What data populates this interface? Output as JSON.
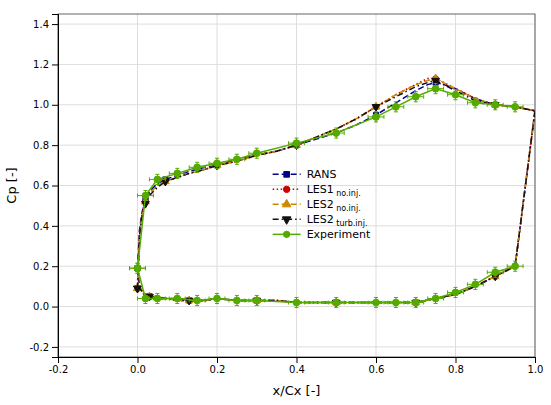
{
  "chart_data": {
    "type": "line",
    "x_label": "x/Cx [-]",
    "y_label": "Cp [-]",
    "xlim": [
      -0.2,
      1.0
    ],
    "ylim": [
      -0.25,
      1.45
    ],
    "xticks": [
      -0.2,
      {
        "value": 0.0,
        "label": "0.0"
      },
      0.2,
      0.4,
      0.6,
      0.8,
      {
        "value": 1.0,
        "label": "1.0"
      }
    ],
    "yticks": [
      -0.2,
      {
        "value": 0.0,
        "label": "0.0"
      },
      0.2,
      0.4,
      0.6,
      0.8,
      {
        "value": 1.0,
        "label": "1.0"
      },
      1.2,
      1.4
    ],
    "grid": true,
    "legend": "center",
    "series": [
      {
        "name": "RANS",
        "color": "#00008B",
        "line_style": "dashed",
        "marker": "square",
        "x": [
          0.0,
          0.005,
          0.01,
          0.015,
          0.02,
          0.03,
          0.04,
          0.05,
          0.07,
          0.1,
          0.13,
          0.17,
          0.2,
          0.25,
          0.3,
          0.35,
          0.4,
          0.45,
          0.5,
          0.55,
          0.6,
          0.65,
          0.7,
          0.73,
          0.75,
          0.77,
          0.8,
          0.85,
          0.9,
          0.95,
          1.0,
          null,
          0.0,
          0.005,
          0.01,
          0.02,
          0.03,
          0.05,
          0.07,
          0.1,
          0.13,
          0.17,
          0.2,
          0.25,
          0.3,
          0.35,
          0.4,
          0.45,
          0.5,
          0.55,
          0.6,
          0.65,
          0.7,
          0.75,
          0.8,
          0.85,
          0.9,
          0.95,
          1.0
        ],
        "values": [
          0.19,
          0.38,
          0.45,
          0.5,
          0.53,
          0.57,
          0.59,
          0.61,
          0.63,
          0.65,
          0.67,
          0.69,
          0.7,
          0.73,
          0.75,
          0.77,
          0.8,
          0.83,
          0.86,
          0.9,
          0.95,
          1.01,
          1.07,
          1.1,
          1.11,
          1.1,
          1.08,
          1.03,
          1.0,
          0.99,
          0.97,
          null,
          0.19,
          0.1,
          0.08,
          0.06,
          0.05,
          0.05,
          0.04,
          0.04,
          0.03,
          0.03,
          0.04,
          0.03,
          0.03,
          0.03,
          0.02,
          0.02,
          0.02,
          0.02,
          0.02,
          0.02,
          0.02,
          0.04,
          0.06,
          0.1,
          0.15,
          0.2,
          0.97
        ]
      },
      {
        "name": "LES1 no.inj.",
        "color": "#CC0000",
        "line_style": "dotted",
        "marker": "circle",
        "x": [
          0.0,
          0.005,
          0.01,
          0.015,
          0.02,
          0.03,
          0.04,
          0.05,
          0.07,
          0.1,
          0.13,
          0.17,
          0.2,
          0.25,
          0.3,
          0.35,
          0.4,
          0.45,
          0.5,
          0.55,
          0.6,
          0.65,
          0.7,
          0.73,
          0.75,
          0.77,
          0.8,
          0.85,
          0.9,
          0.95,
          1.0,
          null,
          0.0,
          0.005,
          0.01,
          0.02,
          0.03,
          0.05,
          0.07,
          0.1,
          0.13,
          0.17,
          0.2,
          0.25,
          0.3,
          0.35,
          0.4,
          0.45,
          0.5,
          0.55,
          0.6,
          0.65,
          0.7,
          0.75,
          0.8,
          0.85,
          0.9,
          0.95,
          1.0
        ],
        "values": [
          0.09,
          0.36,
          0.44,
          0.49,
          0.52,
          0.56,
          0.58,
          0.6,
          0.62,
          0.64,
          0.66,
          0.68,
          0.7,
          0.72,
          0.75,
          0.77,
          0.8,
          0.84,
          0.88,
          0.93,
          0.99,
          1.05,
          1.1,
          1.13,
          1.13,
          1.11,
          1.08,
          1.03,
          1.0,
          0.99,
          0.97,
          null,
          0.09,
          0.09,
          0.08,
          0.05,
          0.05,
          0.04,
          0.04,
          0.03,
          0.03,
          0.03,
          0.04,
          0.03,
          0.03,
          0.03,
          0.02,
          0.02,
          0.02,
          0.02,
          0.02,
          0.02,
          0.02,
          0.04,
          0.06,
          0.1,
          0.15,
          0.2,
          0.97
        ]
      },
      {
        "name": "LES2 no.inj.",
        "color": "#CC8800",
        "line_style": "dashed",
        "marker": "triangle-up",
        "x": [
          0.0,
          0.005,
          0.01,
          0.015,
          0.02,
          0.03,
          0.04,
          0.05,
          0.07,
          0.1,
          0.13,
          0.17,
          0.2,
          0.25,
          0.3,
          0.35,
          0.4,
          0.45,
          0.5,
          0.55,
          0.6,
          0.65,
          0.7,
          0.73,
          0.75,
          0.77,
          0.8,
          0.85,
          0.9,
          0.95,
          1.0,
          null,
          0.0,
          0.005,
          0.01,
          0.02,
          0.03,
          0.05,
          0.07,
          0.1,
          0.13,
          0.17,
          0.2,
          0.25,
          0.3,
          0.35,
          0.4,
          0.45,
          0.5,
          0.55,
          0.6,
          0.65,
          0.7,
          0.75,
          0.8,
          0.85,
          0.9,
          0.95,
          1.0
        ],
        "values": [
          0.09,
          0.35,
          0.43,
          0.48,
          0.52,
          0.56,
          0.58,
          0.6,
          0.62,
          0.64,
          0.66,
          0.68,
          0.7,
          0.72,
          0.75,
          0.77,
          0.8,
          0.84,
          0.88,
          0.93,
          0.99,
          1.05,
          1.1,
          1.12,
          1.13,
          1.11,
          1.08,
          1.03,
          1.0,
          0.99,
          0.97,
          null,
          0.09,
          0.09,
          0.08,
          0.05,
          0.05,
          0.04,
          0.04,
          0.03,
          0.03,
          0.03,
          0.04,
          0.03,
          0.03,
          0.03,
          0.02,
          0.02,
          0.02,
          0.02,
          0.02,
          0.02,
          0.02,
          0.04,
          0.06,
          0.1,
          0.15,
          0.2,
          0.97
        ]
      },
      {
        "name": "LES2 turb.inj.",
        "color": "#111111",
        "line_style": "dashdot",
        "marker": "triangle-down",
        "x": [
          0.0,
          0.005,
          0.01,
          0.015,
          0.02,
          0.03,
          0.04,
          0.05,
          0.07,
          0.1,
          0.13,
          0.17,
          0.2,
          0.25,
          0.3,
          0.35,
          0.4,
          0.45,
          0.5,
          0.55,
          0.6,
          0.65,
          0.7,
          0.73,
          0.75,
          0.77,
          0.8,
          0.85,
          0.9,
          0.95,
          1.0,
          null,
          0.0,
          0.005,
          0.01,
          0.02,
          0.03,
          0.05,
          0.07,
          0.1,
          0.13,
          0.17,
          0.2,
          0.25,
          0.3,
          0.35,
          0.4,
          0.45,
          0.5,
          0.55,
          0.6,
          0.65,
          0.7,
          0.75,
          0.8,
          0.85,
          0.9,
          0.95,
          1.0
        ],
        "values": [
          0.09,
          0.35,
          0.43,
          0.48,
          0.51,
          0.55,
          0.57,
          0.59,
          0.62,
          0.64,
          0.66,
          0.68,
          0.7,
          0.72,
          0.75,
          0.77,
          0.8,
          0.84,
          0.88,
          0.93,
          0.99,
          1.04,
          1.09,
          1.11,
          1.12,
          1.1,
          1.07,
          1.02,
          1.0,
          0.99,
          0.97,
          null,
          0.09,
          0.09,
          0.08,
          0.05,
          0.05,
          0.04,
          0.04,
          0.03,
          0.03,
          0.03,
          0.04,
          0.03,
          0.03,
          0.03,
          0.02,
          0.02,
          0.02,
          0.02,
          0.02,
          0.02,
          0.02,
          0.04,
          0.06,
          0.1,
          0.15,
          0.2,
          0.97
        ]
      },
      {
        "name": "Experiment",
        "color": "#55AA00",
        "line_style": "solid",
        "marker": "circle",
        "x": [
          0.0,
          0.02,
          0.05,
          0.1,
          0.15,
          0.2,
          0.25,
          0.3,
          0.4,
          0.5,
          0.6,
          0.65,
          0.7,
          0.75,
          0.8,
          0.85,
          0.9,
          0.95,
          null,
          0.0,
          0.02,
          0.05,
          0.1,
          0.15,
          0.2,
          0.25,
          0.3,
          0.4,
          0.5,
          0.6,
          0.65,
          0.7,
          0.75,
          0.8,
          0.85,
          0.9,
          0.95
        ],
        "values": [
          0.19,
          0.55,
          0.63,
          0.66,
          0.69,
          0.71,
          0.73,
          0.76,
          0.81,
          0.86,
          0.94,
          0.99,
          1.04,
          1.08,
          1.05,
          1.01,
          1.0,
          0.99,
          null,
          0.19,
          0.04,
          0.04,
          0.04,
          0.03,
          0.04,
          0.03,
          0.03,
          0.02,
          0.02,
          0.02,
          0.02,
          0.02,
          0.04,
          0.07,
          0.11,
          0.17,
          0.2
        ],
        "xerr": 0.02,
        "yerr": 0.025
      }
    ]
  }
}
